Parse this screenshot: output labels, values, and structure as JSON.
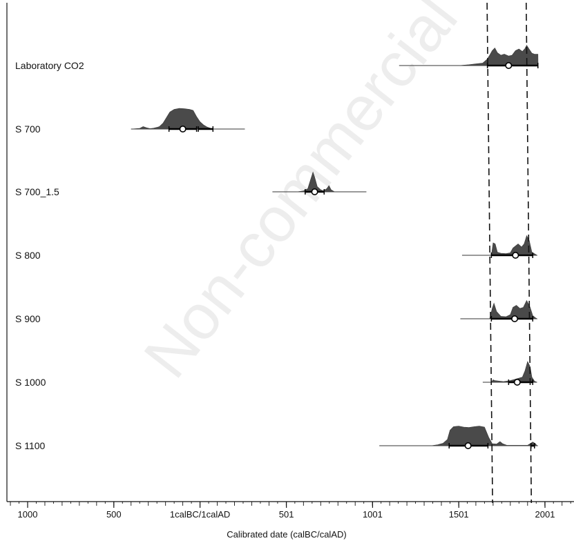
{
  "chart_data": {
    "type": "area",
    "title": "",
    "xlabel": "Calibrated date (calBC/calAD)",
    "ylabel": "",
    "xlim": [
      -1100,
      2180
    ],
    "x_ticks": [
      {
        "value": -1000,
        "label": "1000"
      },
      {
        "value": -500,
        "label": "500"
      },
      {
        "value": 0,
        "label": "1calBC/1calAD"
      },
      {
        "value": 501,
        "label": "501"
      },
      {
        "value": 1001,
        "label": "1001"
      },
      {
        "value": 1501,
        "label": "1501"
      },
      {
        "value": 2001,
        "label": "2001"
      }
    ],
    "grid": false,
    "watermark": "Non-commercial",
    "reference_lines": [
      {
        "style": "dashed",
        "x_top": 1665,
        "x_bottom": 1697
      },
      {
        "style": "dashed",
        "x_top": 1892,
        "x_bottom": 1922
      }
    ],
    "series": [
      {
        "name": "Laboratory CO2",
        "range": [
          1155,
          1960
        ],
        "hpd": [
          [
            1667,
            1960
          ]
        ],
        "point": 1790,
        "color": "#4a4a4a",
        "density": [
          [
            1155,
            0
          ],
          [
            1500,
            0
          ],
          [
            1560,
            0.04
          ],
          [
            1600,
            0.08
          ],
          [
            1640,
            0.12
          ],
          [
            1665,
            0.3
          ],
          [
            1680,
            0.5
          ],
          [
            1695,
            0.72
          ],
          [
            1710,
            0.85
          ],
          [
            1725,
            0.62
          ],
          [
            1745,
            0.5
          ],
          [
            1765,
            0.55
          ],
          [
            1790,
            0.46
          ],
          [
            1810,
            0.5
          ],
          [
            1830,
            0.72
          ],
          [
            1850,
            0.8
          ],
          [
            1870,
            0.68
          ],
          [
            1885,
            0.82
          ],
          [
            1895,
            0.98
          ],
          [
            1910,
            0.78
          ],
          [
            1925,
            0.6
          ],
          [
            1940,
            0.55
          ],
          [
            1960,
            0.55
          ],
          [
            1961,
            0
          ]
        ]
      },
      {
        "name": "S 700",
        "range": [
          -400,
          260
        ],
        "hpd": [
          [
            -180,
            -20
          ],
          [
            -10,
            75
          ]
        ],
        "point": -100,
        "color": "#4a4a4a",
        "density": [
          [
            -400,
            0
          ],
          [
            -350,
            0.03
          ],
          [
            -330,
            0.12
          ],
          [
            -310,
            0.06
          ],
          [
            -290,
            0.02
          ],
          [
            -270,
            0.04
          ],
          [
            -250,
            0.08
          ],
          [
            -235,
            0.12
          ],
          [
            -215,
            0.28
          ],
          [
            -195,
            0.55
          ],
          [
            -175,
            0.82
          ],
          [
            -150,
            0.95
          ],
          [
            -120,
            1.0
          ],
          [
            -90,
            0.98
          ],
          [
            -60,
            0.95
          ],
          [
            -40,
            0.9
          ],
          [
            -20,
            0.6
          ],
          [
            0,
            0.35
          ],
          [
            20,
            0.2
          ],
          [
            40,
            0.1
          ],
          [
            60,
            0.04
          ],
          [
            80,
            0.0
          ]
        ]
      },
      {
        "name": "S 700_1.5",
        "range": [
          420,
          965
        ],
        "hpd": [
          [
            610,
            720
          ]
        ],
        "point": 665,
        "color": "#4a4a4a",
        "density": [
          [
            560,
            0
          ],
          [
            600,
            0.04
          ],
          [
            625,
            0.15
          ],
          [
            640,
            0.55
          ],
          [
            655,
            0.95
          ],
          [
            665,
            0.7
          ],
          [
            680,
            0.25
          ],
          [
            700,
            0.1
          ],
          [
            715,
            0.05
          ],
          [
            735,
            0.15
          ],
          [
            748,
            0.3
          ],
          [
            760,
            0.1
          ],
          [
            780,
            0.0
          ]
        ]
      },
      {
        "name": "S 800",
        "range": [
          1520,
          1955
        ],
        "hpd": [
          [
            1690,
            1930
          ]
        ],
        "point": 1830,
        "color": "#4a4a4a",
        "density": [
          [
            1690,
            0
          ],
          [
            1700,
            0.6
          ],
          [
            1712,
            0.55
          ],
          [
            1725,
            0.15
          ],
          [
            1745,
            0.1
          ],
          [
            1775,
            0.08
          ],
          [
            1800,
            0.12
          ],
          [
            1815,
            0.35
          ],
          [
            1830,
            0.45
          ],
          [
            1845,
            0.55
          ],
          [
            1865,
            0.4
          ],
          [
            1880,
            0.55
          ],
          [
            1895,
            0.95
          ],
          [
            1910,
            0.7
          ],
          [
            1925,
            0.15
          ],
          [
            1945,
            0.05
          ],
          [
            1955,
            0.0
          ]
        ]
      },
      {
        "name": "S 900",
        "range": [
          1510,
          1955
        ],
        "hpd": [
          [
            1690,
            1930
          ]
        ],
        "point": 1825,
        "color": "#4a4a4a",
        "density": [
          [
            1680,
            0
          ],
          [
            1695,
            0.5
          ],
          [
            1705,
            0.75
          ],
          [
            1720,
            0.35
          ],
          [
            1745,
            0.12
          ],
          [
            1775,
            0.1
          ],
          [
            1800,
            0.2
          ],
          [
            1815,
            0.55
          ],
          [
            1835,
            0.65
          ],
          [
            1855,
            0.5
          ],
          [
            1875,
            0.55
          ],
          [
            1895,
            0.88
          ],
          [
            1915,
            0.55
          ],
          [
            1930,
            0.15
          ],
          [
            1945,
            0.05
          ],
          [
            1955,
            0.0
          ]
        ]
      },
      {
        "name": "S 1000",
        "range": [
          1640,
          1955
        ],
        "hpd": [
          [
            1790,
            1930
          ]
        ],
        "point": 1840,
        "color": "#4a4a4a",
        "density": [
          [
            1690,
            0
          ],
          [
            1700,
            0.12
          ],
          [
            1710,
            0.08
          ],
          [
            1760,
            0.03
          ],
          [
            1800,
            0.08
          ],
          [
            1830,
            0.15
          ],
          [
            1850,
            0.2
          ],
          [
            1870,
            0.25
          ],
          [
            1885,
            0.55
          ],
          [
            1900,
            1.0
          ],
          [
            1915,
            0.75
          ],
          [
            1925,
            0.25
          ],
          [
            1940,
            0.05
          ],
          [
            1955,
            0.0
          ]
        ]
      },
      {
        "name": "S 1100",
        "range": [
          1040,
          1960
        ],
        "hpd": [
          [
            1445,
            1670
          ],
          [
            1920,
            1940
          ]
        ],
        "point": 1555,
        "color": "#4a4a4a",
        "density": [
          [
            1340,
            0
          ],
          [
            1380,
            0.05
          ],
          [
            1410,
            0.12
          ],
          [
            1435,
            0.3
          ],
          [
            1450,
            0.75
          ],
          [
            1470,
            0.92
          ],
          [
            1500,
            0.95
          ],
          [
            1530,
            0.9
          ],
          [
            1560,
            0.88
          ],
          [
            1590,
            0.92
          ],
          [
            1620,
            0.95
          ],
          [
            1650,
            0.9
          ],
          [
            1675,
            0.4
          ],
          [
            1695,
            0.1
          ],
          [
            1720,
            0.08
          ],
          [
            1740,
            0.2
          ],
          [
            1755,
            0.1
          ],
          [
            1780,
            0.02
          ],
          [
            1900,
            0.02
          ],
          [
            1930,
            0.18
          ],
          [
            1945,
            0.1
          ],
          [
            1955,
            0.0
          ]
        ]
      }
    ]
  }
}
